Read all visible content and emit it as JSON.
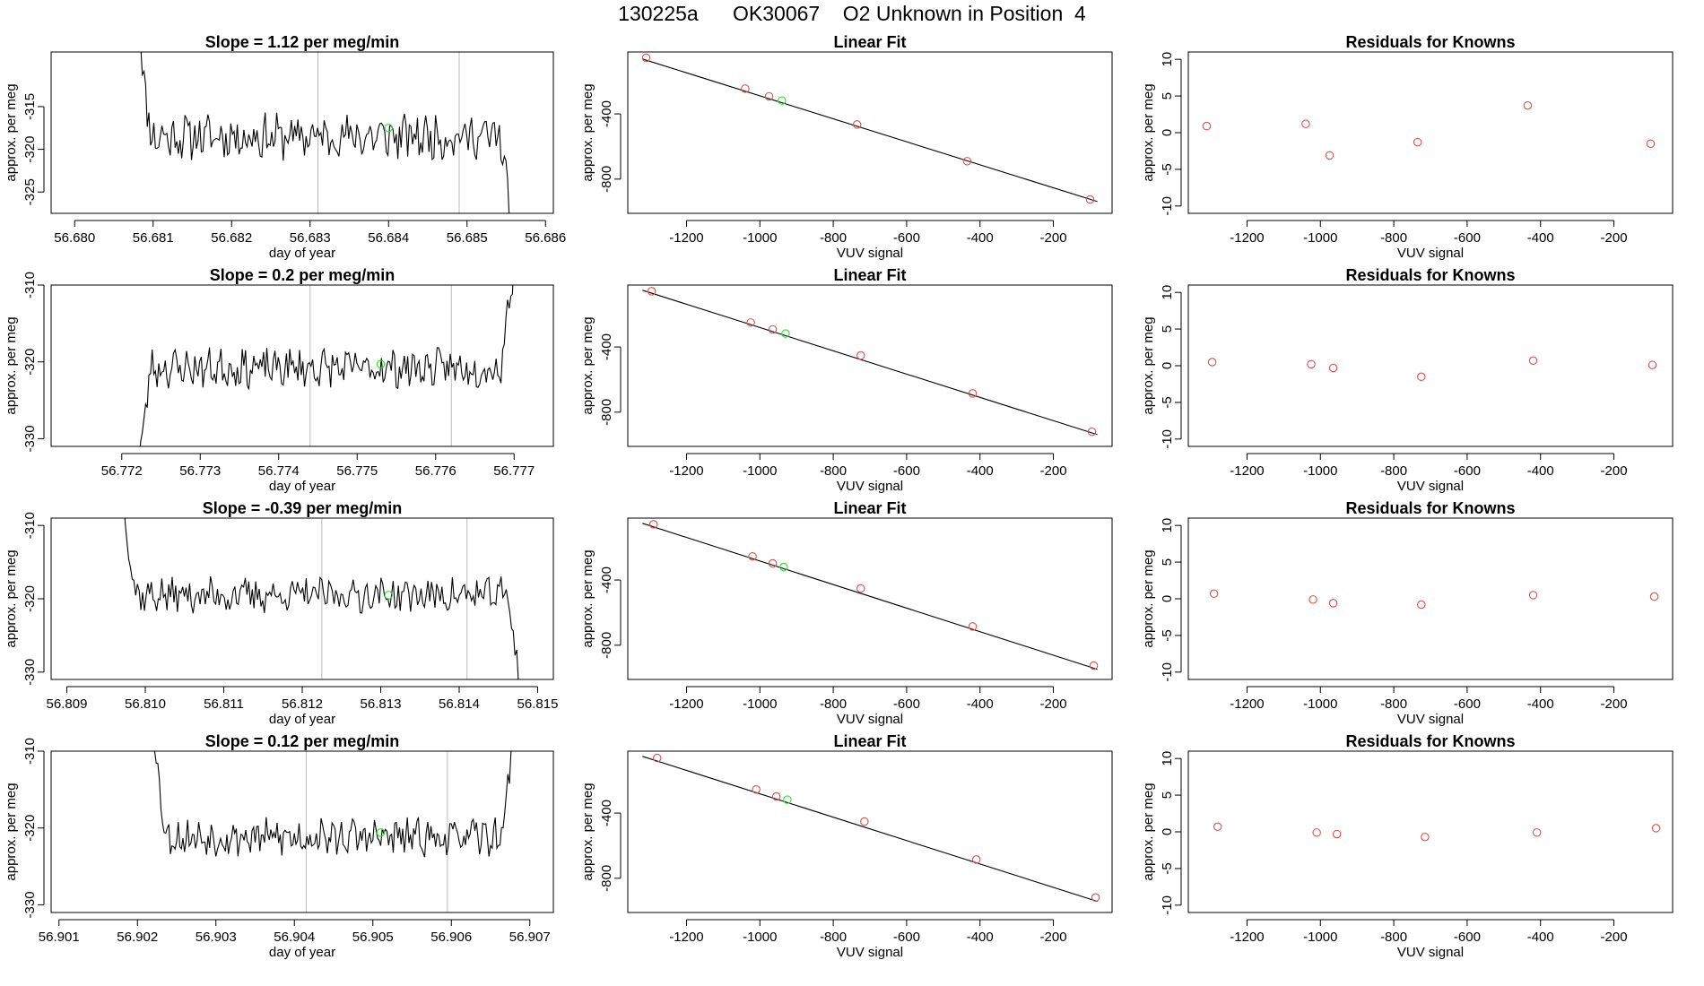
{
  "title": "130225a      OK30067    O2 Unknown in Position  4",
  "colors": {
    "line": "#000000",
    "frame": "#000000",
    "known": "#d9534f",
    "unknown": "#33dd33",
    "vline": "#bbbbbb"
  },
  "chart_data": [
    {
      "type": "line",
      "row": 0,
      "panel": "timeseries",
      "title": "Slope =  1.12  per meg/min",
      "xlabel": "day of year",
      "ylabel": "approx. per meg",
      "xlim": [
        56.6797,
        56.6861
      ],
      "ylim": [
        -327.5,
        -308.6
      ],
      "xticks": [
        56.68,
        56.681,
        56.682,
        56.683,
        56.684,
        56.685,
        56.686
      ],
      "xtick_labels": [
        "56.680",
        "56.681",
        "56.682",
        "56.683",
        "56.684",
        "56.685",
        "56.686"
      ],
      "yticks": [
        -325,
        -320,
        -315
      ],
      "ytick_labels": [
        "-325",
        "-320",
        "-315"
      ],
      "x_start": 56.6808,
      "x_end": 56.6856,
      "base": -318.5,
      "amp": 2.2,
      "seed": 11,
      "vlines": [
        56.6831,
        56.6849
      ],
      "unknown_point": {
        "x": 56.684,
        "y": -317.5
      }
    },
    {
      "type": "scatter",
      "row": 0,
      "panel": "fit",
      "title": "Linear Fit",
      "xlabel": "VUV signal",
      "ylabel": "approx. per meg",
      "xlim": [
        -1360,
        -40
      ],
      "ylim": [
        -1010,
        -20
      ],
      "xticks": [
        -1200,
        -1000,
        -800,
        -600,
        -400,
        -200
      ],
      "xtick_labels": [
        "-1200",
        "-1000",
        "-800",
        "-600",
        "-400",
        "-200"
      ],
      "yticks": [
        -800,
        -400
      ],
      "ytick_labels": [
        "-800",
        "-400"
      ],
      "fit_line": {
        "x": [
          -1320,
          -80
        ],
        "y": [
          -63,
          -938
        ]
      },
      "known_x": [
        -1310,
        -1040,
        -975,
        -735,
        -435,
        -100
      ],
      "known_y": [
        -55,
        -245,
        -292,
        -465,
        -690,
        -925
      ],
      "unknown": {
        "x": -940,
        "y": -318
      }
    },
    {
      "type": "scatter",
      "row": 0,
      "panel": "residuals",
      "title": "Residuals for Knowns",
      "xlabel": "VUV signal",
      "ylabel": "approx. per meg",
      "xlim": [
        -1360,
        -40
      ],
      "ylim": [
        -11,
        11
      ],
      "xticks": [
        -1200,
        -1000,
        -800,
        -600,
        -400,
        -200
      ],
      "xtick_labels": [
        "-1200",
        "-1000",
        "-800",
        "-600",
        "-400",
        "-200"
      ],
      "yticks": [
        -10,
        -5,
        0,
        5,
        10
      ],
      "ytick_labels": [
        "-10",
        "-5",
        "0",
        "5",
        "10"
      ],
      "x": [
        -1310,
        -1040,
        -975,
        -735,
        -435,
        -100
      ],
      "y": [
        0.9,
        1.2,
        -3.1,
        -1.3,
        3.7,
        -1.5
      ]
    },
    {
      "type": "line",
      "row": 1,
      "panel": "timeseries",
      "title": "Slope =  0.2  per meg/min",
      "xlabel": "day of year",
      "ylabel": "approx. per meg",
      "xlim": [
        56.7711,
        56.7775
      ],
      "ylim": [
        -331,
        -310
      ],
      "xticks": [
        56.772,
        56.773,
        56.774,
        56.775,
        56.776,
        56.777
      ],
      "xtick_labels": [
        "56.772",
        "56.773",
        "56.774",
        "56.775",
        "56.776",
        "56.777"
      ],
      "yticks": [
        -330,
        -320,
        -310
      ],
      "ytick_labels": [
        "-330",
        "-320",
        "-310"
      ],
      "x_start": 56.7722,
      "x_end": 56.777,
      "base": -320.8,
      "amp": 2.1,
      "seed": 23,
      "vlines": [
        56.7744,
        56.7762
      ],
      "unknown_point": {
        "x": 56.7753,
        "y": -320.3
      }
    },
    {
      "type": "scatter",
      "row": 1,
      "panel": "fit",
      "title": "Linear Fit",
      "xlabel": "VUV signal",
      "ylabel": "approx. per meg",
      "xlim": [
        -1360,
        -40
      ],
      "ylim": [
        -1010,
        -20
      ],
      "xticks": [
        -1200,
        -1000,
        -800,
        -600,
        -400,
        -200
      ],
      "xtick_labels": [
        "-1200",
        "-1000",
        "-800",
        "-600",
        "-400",
        "-200"
      ],
      "yticks": [
        -800,
        -400
      ],
      "ytick_labels": [
        "-800",
        "-400"
      ],
      "fit_line": {
        "x": [
          -1320,
          -80
        ],
        "y": [
          -52,
          -938
        ]
      },
      "known_x": [
        -1295,
        -1025,
        -965,
        -725,
        -420,
        -95
      ],
      "known_y": [
        -58,
        -250,
        -292,
        -452,
        -685,
        -920
      ],
      "unknown": {
        "x": -930,
        "y": -318
      }
    },
    {
      "type": "scatter",
      "row": 1,
      "panel": "residuals",
      "title": "Residuals for Knowns",
      "xlabel": "VUV signal",
      "ylabel": "approx. per meg",
      "xlim": [
        -1360,
        -40
      ],
      "ylim": [
        -11,
        11
      ],
      "xticks": [
        -1200,
        -1000,
        -800,
        -600,
        -400,
        -200
      ],
      "xtick_labels": [
        "-1200",
        "-1000",
        "-800",
        "-600",
        "-400",
        "-200"
      ],
      "yticks": [
        -10,
        -5,
        0,
        5,
        10
      ],
      "ytick_labels": [
        "-10",
        "-5",
        "0",
        "5",
        "10"
      ],
      "x": [
        -1295,
        -1025,
        -965,
        -725,
        -420,
        -95
      ],
      "y": [
        0.5,
        0.2,
        -0.3,
        -1.5,
        0.7,
        0.1
      ]
    },
    {
      "type": "line",
      "row": 2,
      "panel": "timeseries",
      "title": "Slope =  -0.39  per meg/min",
      "xlabel": "day of year",
      "ylabel": "approx. per meg",
      "xlim": [
        56.8088,
        56.8152
      ],
      "ylim": [
        -331,
        -309
      ],
      "xticks": [
        56.809,
        56.81,
        56.811,
        56.812,
        56.813,
        56.814,
        56.815
      ],
      "xtick_labels": [
        "56.809",
        "56.810",
        "56.811",
        "56.812",
        "56.813",
        "56.814",
        "56.815"
      ],
      "yticks": [
        -330,
        -320,
        -310
      ],
      "ytick_labels": [
        "-330",
        "-320",
        "-310"
      ],
      "x_start": 56.8097,
      "x_end": 56.8148,
      "base": -319.5,
      "amp": 2.0,
      "seed": 37,
      "vlines": [
        56.81225,
        56.8141
      ],
      "unknown_point": {
        "x": 56.8131,
        "y": -319.5
      }
    },
    {
      "type": "scatter",
      "row": 2,
      "panel": "fit",
      "title": "Linear Fit",
      "xlabel": "VUV signal",
      "ylabel": "approx. per meg",
      "xlim": [
        -1360,
        -40
      ],
      "ylim": [
        -1010,
        -20
      ],
      "xticks": [
        -1200,
        -1000,
        -800,
        -600,
        -400,
        -200
      ],
      "xtick_labels": [
        "-1200",
        "-1000",
        "-800",
        "-600",
        "-400",
        "-200"
      ],
      "yticks": [
        -800,
        -400
      ],
      "ytick_labels": [
        "-800",
        "-400"
      ],
      "fit_line": {
        "x": [
          -1320,
          -80
        ],
        "y": [
          -52,
          -948
        ]
      },
      "known_x": [
        -1290,
        -1020,
        -965,
        -725,
        -420,
        -90
      ],
      "known_y": [
        -58,
        -255,
        -298,
        -452,
        -685,
        -925
      ],
      "unknown": {
        "x": -935,
        "y": -320
      }
    },
    {
      "type": "scatter",
      "row": 2,
      "panel": "residuals",
      "title": "Residuals for Knowns",
      "xlabel": "VUV signal",
      "ylabel": "approx. per meg",
      "xlim": [
        -1360,
        -40
      ],
      "ylim": [
        -11,
        11
      ],
      "xticks": [
        -1200,
        -1000,
        -800,
        -600,
        -400,
        -200
      ],
      "xtick_labels": [
        "-1200",
        "-1000",
        "-800",
        "-600",
        "-400",
        "-200"
      ],
      "yticks": [
        -10,
        -5,
        0,
        5,
        10
      ],
      "ytick_labels": [
        "-10",
        "-5",
        "0",
        "5",
        "10"
      ],
      "x": [
        -1290,
        -1020,
        -965,
        -725,
        -420,
        -90
      ],
      "y": [
        0.7,
        -0.1,
        -0.6,
        -0.8,
        0.5,
        0.3
      ]
    },
    {
      "type": "line",
      "row": 3,
      "panel": "timeseries",
      "title": "Slope =  0.12  per meg/min",
      "xlabel": "day of year",
      "ylabel": "approx. per meg",
      "xlim": [
        56.9009,
        56.9073
      ],
      "ylim": [
        -331,
        -310
      ],
      "xticks": [
        56.901,
        56.902,
        56.903,
        56.904,
        56.905,
        56.906,
        56.907
      ],
      "xtick_labels": [
        "56.901",
        "56.902",
        "56.903",
        "56.904",
        "56.905",
        "56.906",
        "56.907"
      ],
      "yticks": [
        -330,
        -320,
        -310
      ],
      "ytick_labels": [
        "-330",
        "-320",
        "-310"
      ],
      "x_start": 56.9022,
      "x_end": 56.9068,
      "base": -321.2,
      "amp": 2.0,
      "seed": 53,
      "vlines": [
        56.90415,
        56.90595
      ],
      "unknown_point": {
        "x": 56.9051,
        "y": -320.6
      }
    },
    {
      "type": "scatter",
      "row": 3,
      "panel": "fit",
      "title": "Linear Fit",
      "xlabel": "VUV signal",
      "ylabel": "approx. per meg",
      "xlim": [
        -1360,
        -40
      ],
      "ylim": [
        -1010,
        -20
      ],
      "xticks": [
        -1200,
        -1000,
        -800,
        -600,
        -400,
        -200
      ],
      "xtick_labels": [
        "-1200",
        "-1000",
        "-800",
        "-600",
        "-400",
        "-200"
      ],
      "yticks": [
        -800,
        -400
      ],
      "ytick_labels": [
        "-800",
        "-400"
      ],
      "fit_line": {
        "x": [
          -1320,
          -80
        ],
        "y": [
          -52,
          -942
        ]
      },
      "known_x": [
        -1280,
        -1010,
        -955,
        -715,
        -410,
        -85
      ],
      "known_y": [
        -62,
        -255,
        -298,
        -452,
        -685,
        -918
      ],
      "unknown": {
        "x": -925,
        "y": -318
      }
    },
    {
      "type": "scatter",
      "row": 3,
      "panel": "residuals",
      "title": "Residuals for Knowns",
      "xlabel": "VUV signal",
      "ylabel": "approx. per meg",
      "xlim": [
        -1360,
        -40
      ],
      "ylim": [
        -11,
        11
      ],
      "xticks": [
        -1200,
        -1000,
        -800,
        -600,
        -400,
        -200
      ],
      "xtick_labels": [
        "-1200",
        "-1000",
        "-800",
        "-600",
        "-400",
        "-200"
      ],
      "yticks": [
        -10,
        -5,
        0,
        5,
        10
      ],
      "ytick_labels": [
        "-10",
        "-5",
        "0",
        "5",
        "10"
      ],
      "x": [
        -1280,
        -1010,
        -955,
        -715,
        -410,
        -85
      ],
      "y": [
        0.7,
        -0.1,
        -0.3,
        -0.7,
        -0.1,
        0.5
      ]
    }
  ]
}
